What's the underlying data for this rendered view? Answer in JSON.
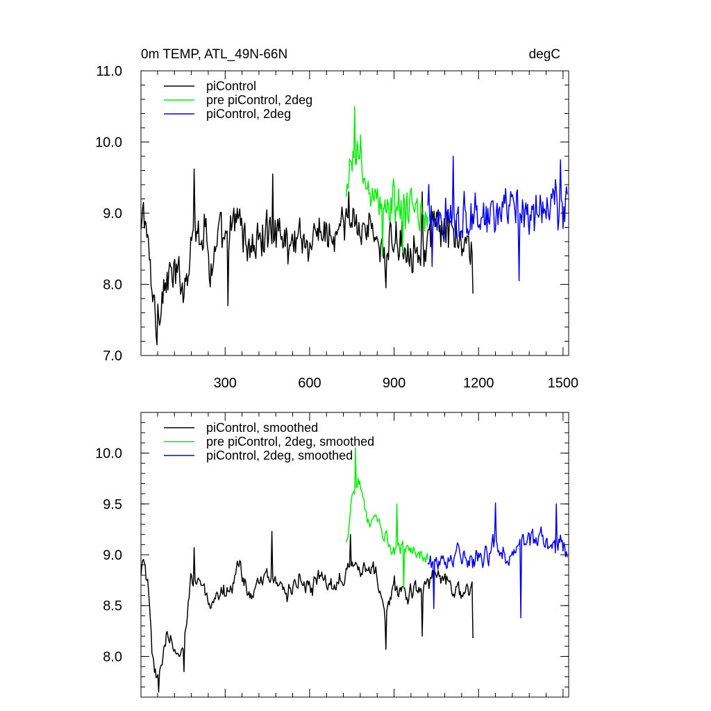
{
  "chart_data": [
    {
      "type": "line",
      "title": "0m TEMP, ATL_49N-66N",
      "units": "degC",
      "xlim": [
        1,
        1520
      ],
      "ylim": [
        7.0,
        11.0
      ],
      "y_ticks": [
        7.0,
        8.0,
        9.0,
        10.0,
        11.0
      ],
      "y_tick_labels": [
        "7.0",
        "8.0",
        "9.0",
        "10.0",
        "11.0"
      ],
      "x_ticks": [
        300,
        600,
        900,
        1200,
        1500
      ],
      "x_tick_labels": [
        "300",
        "600",
        "900",
        "1200",
        "1500"
      ],
      "legend_position": "top-left",
      "series": [
        {
          "name": "piControl",
          "color": "#000000",
          "x_start": 1,
          "x_end": 1180,
          "anchors": [
            [
              1,
              8.6
            ],
            [
              10,
              9.1
            ],
            [
              20,
              8.8
            ],
            [
              30,
              8.3
            ],
            [
              45,
              7.8
            ],
            [
              55,
              7.5
            ],
            [
              65,
              7.7
            ],
            [
              80,
              7.9
            ],
            [
              100,
              8.1
            ],
            [
              130,
              8.1
            ],
            [
              160,
              8.0
            ],
            [
              185,
              8.9
            ],
            [
              200,
              8.7
            ],
            [
              230,
              8.8
            ],
            [
              250,
              8.2
            ],
            [
              280,
              8.7
            ],
            [
              300,
              8.5
            ],
            [
              320,
              8.7
            ],
            [
              350,
              9.0
            ],
            [
              380,
              8.5
            ],
            [
              420,
              8.6
            ],
            [
              450,
              8.7
            ],
            [
              480,
              8.8
            ],
            [
              500,
              8.7
            ],
            [
              530,
              8.5
            ],
            [
              560,
              8.8
            ],
            [
              600,
              8.5
            ],
            [
              640,
              8.8
            ],
            [
              680,
              8.6
            ],
            [
              720,
              8.8
            ],
            [
              760,
              8.9
            ],
            [
              800,
              8.8
            ],
            [
              840,
              8.7
            ],
            [
              870,
              8.3
            ],
            [
              900,
              8.7
            ],
            [
              950,
              8.5
            ],
            [
              1000,
              8.5
            ],
            [
              1050,
              8.8
            ],
            [
              1100,
              8.7
            ],
            [
              1150,
              8.5
            ],
            [
              1180,
              8.6
            ]
          ],
          "amplitude": 0.28,
          "spikes": [
            [
              57,
              7.15
            ],
            [
              190,
              9.62
            ],
            [
              310,
              7.7
            ],
            [
              470,
              9.55
            ],
            [
              740,
              9.3
            ],
            [
              870,
              7.95
            ],
            [
              1000,
              9.3
            ],
            [
              1180,
              7.87
            ]
          ]
        },
        {
          "name": "pre piControl, 2deg",
          "color": "#00ee00",
          "x_start": 730,
          "x_end": 1020,
          "anchors": [
            [
              730,
              9.1
            ],
            [
              750,
              9.7
            ],
            [
              770,
              9.9
            ],
            [
              790,
              9.5
            ],
            [
              810,
              9.3
            ],
            [
              840,
              9.2
            ],
            [
              870,
              9.0
            ],
            [
              900,
              9.15
            ],
            [
              940,
              9.05
            ],
            [
              980,
              9.0
            ],
            [
              1020,
              8.95
            ]
          ],
          "amplitude": 0.28,
          "spikes": [
            [
              760,
              10.5
            ],
            [
              780,
              10.1
            ],
            [
              860,
              8.4
            ],
            [
              930,
              8.45
            ]
          ]
        },
        {
          "name": "piControl, 2deg",
          "color": "#0000ee",
          "x_start": 1020,
          "x_end": 1515,
          "anchors": [
            [
              1020,
              9.0
            ],
            [
              1080,
              8.95
            ],
            [
              1150,
              9.0
            ],
            [
              1200,
              8.9
            ],
            [
              1260,
              9.05
            ],
            [
              1320,
              8.95
            ],
            [
              1380,
              9.05
            ],
            [
              1440,
              9.1
            ],
            [
              1515,
              9.05
            ]
          ],
          "amplitude": 0.33,
          "spikes": [
            [
              1035,
              8.25
            ],
            [
              1110,
              9.8
            ],
            [
              1345,
              8.05
            ],
            [
              1490,
              9.75
            ]
          ]
        }
      ]
    },
    {
      "type": "line",
      "title": "",
      "units": "",
      "xlim": [
        1,
        1520
      ],
      "ylim": [
        7.6,
        10.4
      ],
      "y_ticks": [
        8.0,
        8.5,
        9.0,
        9.5,
        10.0
      ],
      "y_tick_labels": [
        "8.0",
        "8.5",
        "9.0",
        "9.5",
        "10.0"
      ],
      "x_ticks": [
        300,
        600,
        900,
        1200,
        1500
      ],
      "x_tick_labels": [],
      "legend_position": "top-left",
      "series": [
        {
          "name": "piControl, smoothed",
          "color": "#000000",
          "x_start": 1,
          "x_end": 1180,
          "anchors": [
            [
              1,
              8.75
            ],
            [
              10,
              8.95
            ],
            [
              25,
              8.7
            ],
            [
              40,
              8.0
            ],
            [
              55,
              7.75
            ],
            [
              70,
              7.9
            ],
            [
              90,
              8.2
            ],
            [
              120,
              8.05
            ],
            [
              150,
              8.0
            ],
            [
              180,
              8.85
            ],
            [
              220,
              8.7
            ],
            [
              250,
              8.4
            ],
            [
              280,
              8.6
            ],
            [
              320,
              8.7
            ],
            [
              350,
              8.95
            ],
            [
              380,
              8.6
            ],
            [
              420,
              8.7
            ],
            [
              450,
              8.75
            ],
            [
              480,
              8.8
            ],
            [
              520,
              8.6
            ],
            [
              560,
              8.8
            ],
            [
              600,
              8.6
            ],
            [
              640,
              8.8
            ],
            [
              680,
              8.7
            ],
            [
              720,
              8.85
            ],
            [
              760,
              8.95
            ],
            [
              800,
              8.85
            ],
            [
              840,
              8.8
            ],
            [
              870,
              8.35
            ],
            [
              900,
              8.7
            ],
            [
              950,
              8.6
            ],
            [
              1000,
              8.65
            ],
            [
              1050,
              8.85
            ],
            [
              1100,
              8.75
            ],
            [
              1150,
              8.6
            ],
            [
              1180,
              8.65
            ]
          ],
          "amplitude": 0.14,
          "spikes": [
            [
              65,
              7.65
            ],
            [
              155,
              7.85
            ],
            [
              190,
              9.07
            ],
            [
              465,
              9.23
            ],
            [
              745,
              9.2
            ],
            [
              870,
              8.07
            ],
            [
              1000,
              8.2
            ],
            [
              1180,
              8.18
            ]
          ]
        },
        {
          "name": "pre piControl, 2deg, smoothed",
          "color": "#00ee00",
          "x_start": 730,
          "x_end": 1020,
          "anchors": [
            [
              730,
              9.1
            ],
            [
              750,
              9.6
            ],
            [
              775,
              9.75
            ],
            [
              800,
              9.4
            ],
            [
              830,
              9.3
            ],
            [
              860,
              9.2
            ],
            [
              890,
              9.05
            ],
            [
              930,
              9.1
            ],
            [
              970,
              9.0
            ],
            [
              1020,
              8.95
            ]
          ],
          "amplitude": 0.12,
          "spikes": [
            [
              762,
              10.05
            ],
            [
              910,
              9.5
            ],
            [
              935,
              8.67
            ]
          ]
        },
        {
          "name": "piControl, 2deg, smoothed",
          "color": "#0000ee",
          "x_start": 1020,
          "x_end": 1515,
          "anchors": [
            [
              1020,
              8.9
            ],
            [
              1080,
              9.0
            ],
            [
              1150,
              9.05
            ],
            [
              1200,
              8.9
            ],
            [
              1260,
              9.1
            ],
            [
              1320,
              9.0
            ],
            [
              1380,
              9.15
            ],
            [
              1440,
              9.1
            ],
            [
              1515,
              9.05
            ]
          ],
          "amplitude": 0.16,
          "spikes": [
            [
              1040,
              8.47
            ],
            [
              1350,
              8.38
            ],
            [
              1260,
              9.51
            ],
            [
              1475,
              9.5
            ]
          ]
        }
      ]
    }
  ]
}
